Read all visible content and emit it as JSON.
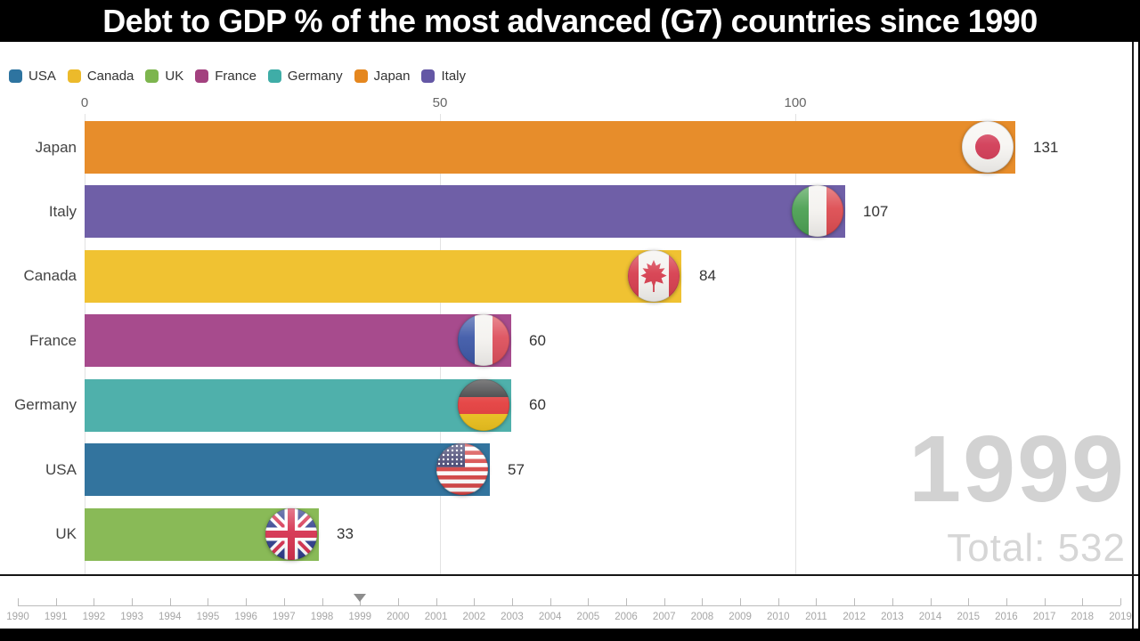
{
  "title": "Debt to GDP % of the most advanced (G7) countries since 1990",
  "chart_data": {
    "type": "bar",
    "orientation": "horizontal",
    "title": "Debt to GDP % of the most advanced (G7) countries since 1990",
    "year": "1999",
    "total_label": "Total: 532",
    "x_ticks": [
      0,
      50,
      100
    ],
    "xlim": [
      0,
      148
    ],
    "grid_on": true,
    "legend_position": "top-left",
    "legend": [
      {
        "label": "USA",
        "color": "#2e74a0"
      },
      {
        "label": "Canada",
        "color": "#ecba2b"
      },
      {
        "label": "UK",
        "color": "#7db54e"
      },
      {
        "label": "France",
        "color": "#a3417f"
      },
      {
        "label": "Germany",
        "color": "#3fada7"
      },
      {
        "label": "Japan",
        "color": "#e5871f"
      },
      {
        "label": "Italy",
        "color": "#6457a5"
      }
    ],
    "bars": [
      {
        "country": "Japan",
        "value": 131,
        "color": "#e78d2b",
        "flag": "japan"
      },
      {
        "country": "Italy",
        "value": 107,
        "color": "#6f5fa7",
        "flag": "italy"
      },
      {
        "country": "Canada",
        "value": 84,
        "color": "#f0c232",
        "flag": "canada"
      },
      {
        "country": "France",
        "value": 60,
        "color": "#a74b8d",
        "flag": "france"
      },
      {
        "country": "Germany",
        "value": 60,
        "color": "#4fb0ab",
        "flag": "germany"
      },
      {
        "country": "USA",
        "value": 57,
        "color": "#33749e",
        "flag": "usa"
      },
      {
        "country": "UK",
        "value": 33,
        "color": "#89ba57",
        "flag": "uk"
      }
    ],
    "timeline": {
      "years": [
        "1990",
        "1991",
        "1992",
        "1993",
        "1994",
        "1995",
        "1996",
        "1997",
        "1998",
        "1999",
        "2000",
        "2001",
        "2002",
        "2003",
        "2004",
        "2005",
        "2006",
        "2007",
        "2008",
        "2009",
        "2010",
        "2011",
        "2012",
        "2013",
        "2014",
        "2015",
        "2016",
        "2017",
        "2018",
        "2019"
      ],
      "current": "1999"
    }
  }
}
